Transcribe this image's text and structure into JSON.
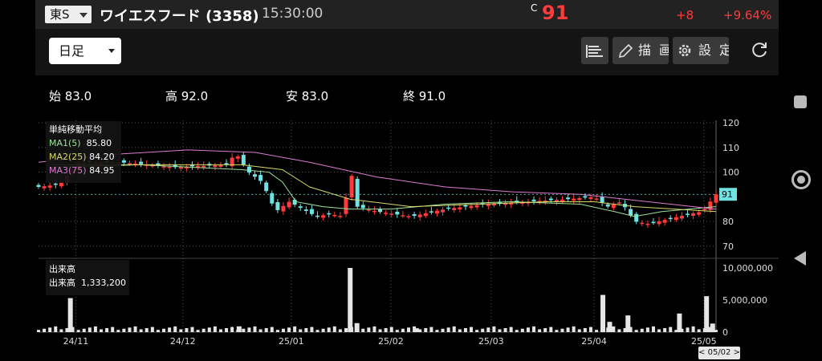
{
  "header": {
    "market": "東S",
    "title": "ワイエスフード (3358)",
    "time": "15:30:00",
    "price_mark": "C",
    "price": "91",
    "change": "+8",
    "change_pct": "+9.64%"
  },
  "toolbar": {
    "period": "日足",
    "draw_label": "描画",
    "settings_label": "設定"
  },
  "ohlc": {
    "open": "始 83.0",
    "high": "高 92.0",
    "low": "安 83.0",
    "close": "終 91.0"
  },
  "ma_legend": {
    "title": "単純移動平均",
    "ma1_label": "MA1(5)",
    "ma1_value": "85.80",
    "ma2_label": "MA2(25)",
    "ma2_value": "84.20",
    "ma3_label": "MA3(75)",
    "ma3_value": "84.95"
  },
  "volume_legend": {
    "title": "出来高",
    "label": "出来高",
    "value": "1,333,200"
  },
  "date_flag": "< 05/02 >",
  "colors": {
    "up": "#ff3b3b",
    "down": "#6fe3e3",
    "ma1": "#9be39b",
    "ma2": "#d9d96a",
    "ma3": "#e07ad4"
  },
  "chart_data": {
    "type": "candlestick",
    "price_axis": {
      "ylim": [
        67,
        121
      ],
      "ticks": [
        120,
        110,
        100,
        91,
        80,
        70
      ],
      "current": 91
    },
    "volume_axis": {
      "ylim": [
        0,
        11000000
      ],
      "ticks": [
        "10,000,000",
        "5,000,000",
        "0"
      ]
    },
    "x_labels": [
      "24/11",
      "24/12",
      "25/01",
      "25/02",
      "25/03",
      "25/04",
      "25/05"
    ],
    "series": [
      {
        "name": "MA1(5)",
        "color": "#9be39b",
        "x": [
          0.02,
          0.15,
          0.3,
          0.34,
          0.36,
          0.38,
          0.42,
          0.46,
          0.52,
          0.6,
          0.7,
          0.8,
          0.85,
          0.88,
          0.92,
          1.0
        ],
        "y": [
          103,
          103,
          101,
          100,
          96,
          88,
          86,
          85,
          85,
          87,
          88,
          87,
          84,
          82,
          84,
          86
        ]
      },
      {
        "name": "MA2(25)",
        "color": "#d9d96a",
        "x": [
          0.02,
          0.15,
          0.3,
          0.36,
          0.4,
          0.46,
          0.55,
          0.65,
          0.75,
          0.82,
          0.88,
          1.0
        ],
        "y": [
          102,
          103,
          103,
          101,
          94,
          89,
          86,
          87,
          88,
          88,
          86,
          84
        ]
      },
      {
        "name": "MA3(75)",
        "color": "#e07ad4",
        "x": [
          0.0,
          0.1,
          0.22,
          0.32,
          0.4,
          0.5,
          0.6,
          0.7,
          0.8,
          0.9,
          1.0
        ],
        "y": [
          104,
          107,
          109,
          108,
          104,
          98,
          94,
          92,
          91,
          88,
          85
        ]
      }
    ],
    "volume_bars": [
      {
        "x": 0.047,
        "v": 5300000
      },
      {
        "x": 0.296,
        "v": 900000
      },
      {
        "x": 0.46,
        "v": 10000000
      },
      {
        "x": 0.47,
        "v": 1400000
      },
      {
        "x": 0.558,
        "v": 600000
      },
      {
        "x": 0.833,
        "v": 5800000
      },
      {
        "x": 0.843,
        "v": 1600000
      },
      {
        "x": 0.87,
        "v": 2600000
      },
      {
        "x": 0.946,
        "v": 2900000
      },
      {
        "x": 0.986,
        "v": 5600000
      },
      {
        "x": 0.995,
        "v": 1333200
      }
    ]
  }
}
